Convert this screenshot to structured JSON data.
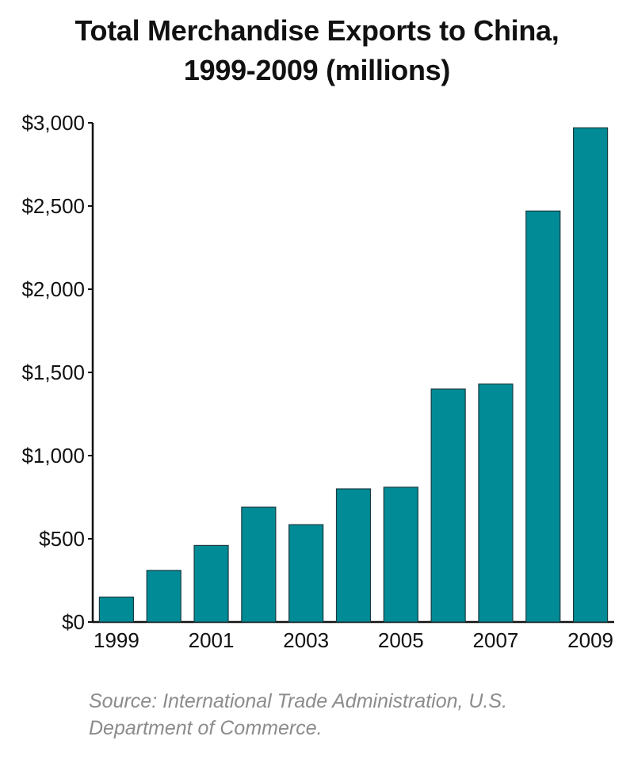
{
  "chart_data": {
    "type": "bar",
    "title": "Total Merchandise Exports to China, 1999-2009 (millions)",
    "title_lines": [
      "Total Merchandise Exports to China,",
      "1999-2009 (millions)"
    ],
    "xlabel": "",
    "ylabel": "",
    "categories": [
      "1999",
      "2000",
      "2001",
      "2002",
      "2003",
      "2004",
      "2005",
      "2006",
      "2007",
      "2008",
      "2009"
    ],
    "x_tick_labels": [
      "1999",
      "2001",
      "2003",
      "2005",
      "2007",
      "2009"
    ],
    "values": [
      150,
      310,
      460,
      690,
      585,
      800,
      810,
      1400,
      1430,
      2470,
      2970
    ],
    "ylim": [
      0,
      3000
    ],
    "y_ticks": [
      0,
      500,
      1000,
      1500,
      2000,
      2500,
      3000
    ],
    "y_tick_labels": [
      "$0",
      "$500",
      "$1,000",
      "$1,500",
      "$2,000",
      "$2,500",
      "$3,000"
    ],
    "grid": false,
    "legend": "none",
    "bar_color": "#008b96",
    "bar_stroke": "#1a3b40"
  },
  "source": {
    "line1": "Source: International Trade Administration, U.S.",
    "line2": "Department of Commerce."
  }
}
